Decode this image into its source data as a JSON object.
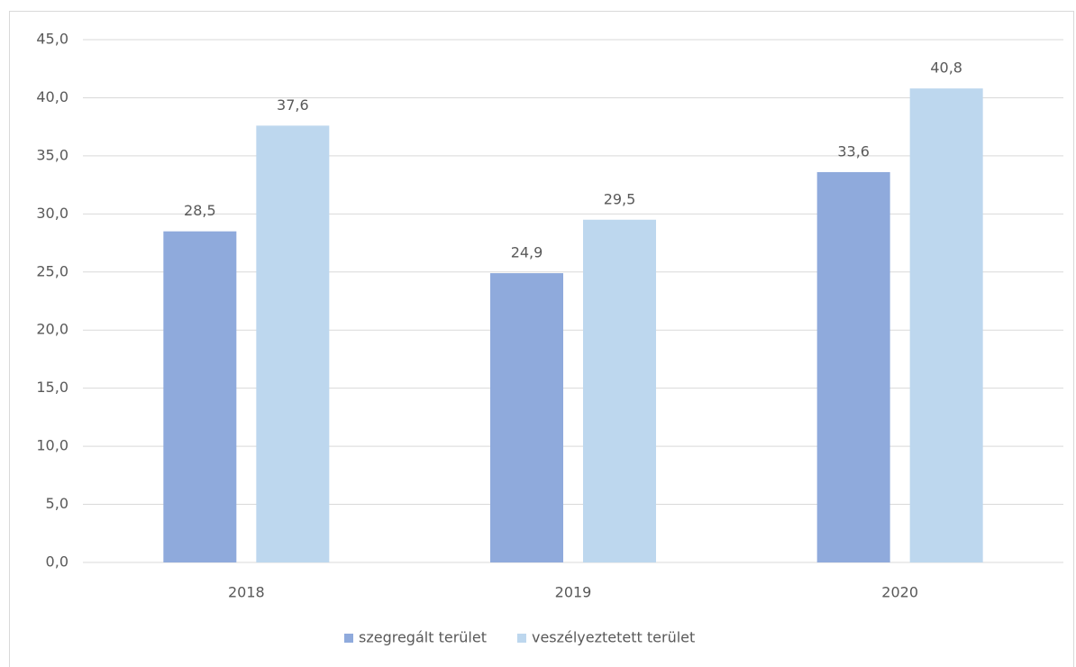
{
  "chart_data": {
    "type": "bar",
    "categories": [
      "2018",
      "2019",
      "2020"
    ],
    "series": [
      {
        "name": "szegregált terület",
        "color": "#8faadc",
        "values": [
          28.5,
          24.9,
          33.6
        ],
        "value_labels": [
          "28,5",
          "24,9",
          "33,6"
        ]
      },
      {
        "name": "veszélyeztetett terület",
        "color": "#bdd7ee",
        "values": [
          37.6,
          29.5,
          40.8
        ],
        "value_labels": [
          "37,6",
          "29,5",
          "40,8"
        ]
      }
    ],
    "ylim": [
      0,
      45
    ],
    "yticks": [
      {
        "value": 0,
        "label": "0,0"
      },
      {
        "value": 5,
        "label": "5,0"
      },
      {
        "value": 10,
        "label": "10,0"
      },
      {
        "value": 15,
        "label": "15,0"
      },
      {
        "value": 20,
        "label": "20,0"
      },
      {
        "value": 25,
        "label": "25,0"
      },
      {
        "value": 30,
        "label": "30,0"
      },
      {
        "value": 35,
        "label": "35,0"
      },
      {
        "value": 40,
        "label": "40,0"
      },
      {
        "value": 45,
        "label": "45,0"
      }
    ],
    "grid": true,
    "legend": "bottom"
  }
}
